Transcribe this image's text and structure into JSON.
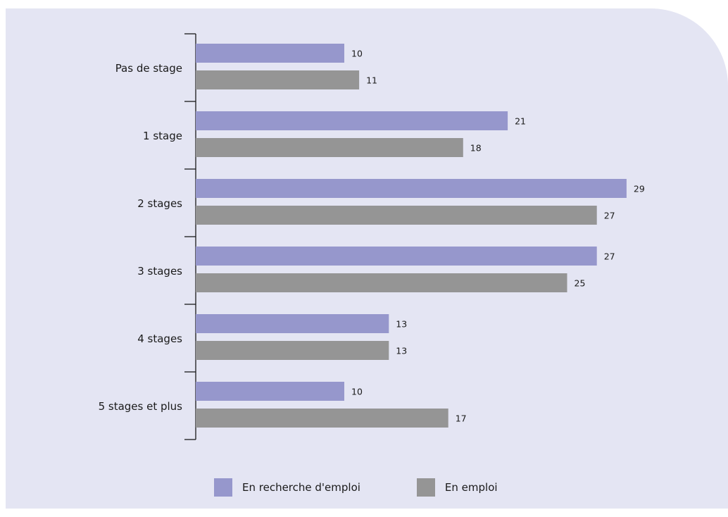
{
  "chart_data": {
    "type": "bar",
    "orientation": "horizontal",
    "categories": [
      "Pas de stage",
      "1 stage",
      "2 stages",
      "3 stages",
      "4 stages",
      "5 stages et plus"
    ],
    "series": [
      {
        "name": "En recherche d'emploi",
        "color": "#9697cc",
        "values": [
          10,
          21,
          29,
          27,
          13,
          10
        ]
      },
      {
        "name": "En emploi",
        "color": "#959595",
        "values": [
          11,
          18,
          27,
          25,
          13,
          17
        ]
      }
    ],
    "xlim": [
      0,
      29
    ],
    "grid": false,
    "legend_position": "bottom"
  },
  "colors": {
    "panel_background": "#e4e5f3",
    "text": "#1a1a1a"
  }
}
